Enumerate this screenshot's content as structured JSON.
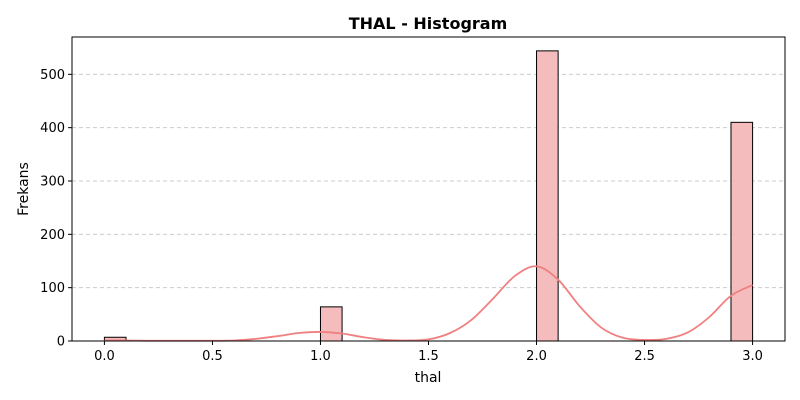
{
  "chart_data": {
    "type": "bar",
    "title": "THAL - Histogram",
    "xlabel": "thal",
    "ylabel": "Frekans",
    "xlim": [
      -0.15,
      3.15
    ],
    "ylim": [
      0,
      570
    ],
    "x_ticks": [
      0.0,
      0.5,
      1.0,
      1.5,
      2.0,
      2.5,
      3.0
    ],
    "x_tick_labels": [
      "0.0",
      "0.5",
      "1.0",
      "1.5",
      "2.0",
      "2.5",
      "3.0"
    ],
    "y_ticks": [
      0,
      100,
      200,
      300,
      400,
      500
    ],
    "y_tick_labels": [
      "0",
      "100",
      "200",
      "300",
      "400",
      "500"
    ],
    "grid": "y-dashed",
    "bin_width": 0.1,
    "bins": [
      {
        "x0": 0.0,
        "x1": 0.1,
        "count": 7
      },
      {
        "x0": 1.0,
        "x1": 1.1,
        "count": 64
      },
      {
        "x0": 2.0,
        "x1": 2.1,
        "count": 544
      },
      {
        "x0": 2.9,
        "x1": 3.0,
        "count": 410
      }
    ],
    "kde": {
      "x": [
        0.0,
        0.1,
        0.2,
        0.3,
        0.4,
        0.5,
        0.6,
        0.7,
        0.8,
        0.9,
        1.0,
        1.1,
        1.2,
        1.3,
        1.4,
        1.5,
        1.6,
        1.7,
        1.8,
        1.9,
        2.0,
        2.1,
        2.2,
        2.3,
        2.4,
        2.5,
        2.6,
        2.7,
        2.8,
        2.9,
        3.0
      ],
      "y": [
        1,
        1,
        0.5,
        0.5,
        0.5,
        0.5,
        1,
        4,
        9,
        15,
        17,
        14,
        7,
        2,
        1,
        3,
        15,
        40,
        80,
        122,
        140,
        115,
        65,
        25,
        6,
        2,
        4,
        16,
        45,
        85,
        105
      ]
    },
    "colors": {
      "bar_fill": "#f4bcbc",
      "bar_stroke": "#000000",
      "kde_line": "#f08080",
      "grid": "#cccccc"
    }
  }
}
